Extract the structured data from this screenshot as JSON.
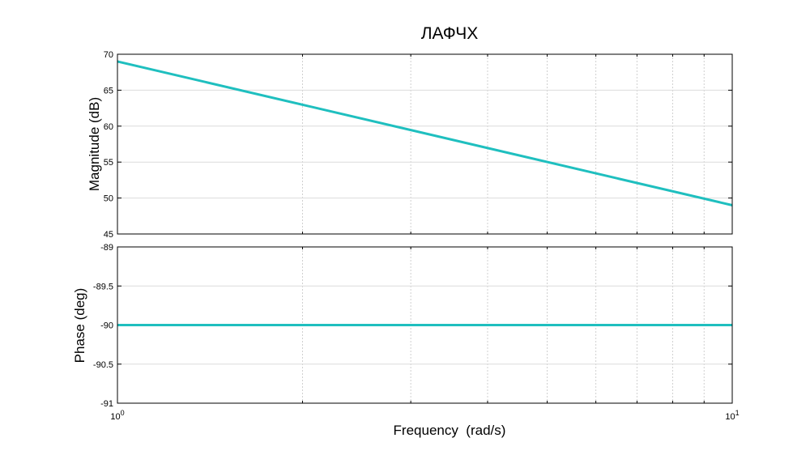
{
  "chart_data": {
    "type": "line",
    "title": "ЛАФЧХ",
    "xlabel": "Frequency  (rad/s)",
    "x_scale": "log",
    "xlim": [
      1,
      10
    ],
    "x_tick_labels": [
      {
        "base": "10",
        "exp": "0"
      },
      {
        "base": "10",
        "exp": "1"
      }
    ],
    "grid": true,
    "line_color": "#1fbfbf",
    "subplots": [
      {
        "name": "magnitude",
        "ylabel": "Magnitude (dB)",
        "ylim": [
          45,
          70
        ],
        "yticks": [
          45,
          50,
          55,
          60,
          65,
          70
        ],
        "ytick_labels": [
          "45",
          "50",
          "55",
          "60",
          "65",
          "70"
        ],
        "x": [
          1,
          10
        ],
        "y": [
          69,
          49
        ]
      },
      {
        "name": "phase",
        "ylabel": "Phase (deg)",
        "ylim": [
          -91,
          -89
        ],
        "yticks": [
          -91,
          -90.5,
          -90,
          -89.5,
          -89
        ],
        "ytick_labels": [
          "-91",
          "-90.5",
          "-90",
          "-89.5",
          "-89"
        ],
        "x": [
          1,
          10
        ],
        "y": [
          -90,
          -90
        ]
      }
    ]
  }
}
